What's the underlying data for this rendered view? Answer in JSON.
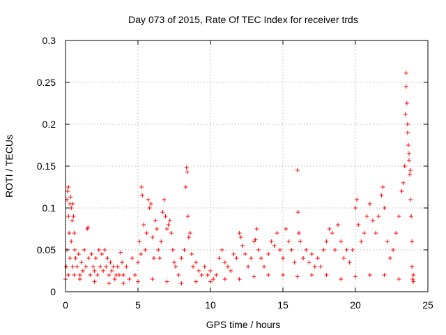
{
  "chart_data": {
    "type": "scatter",
    "title": "Day 073 of 2015, Rate Of TEC Index for receiver trds",
    "xlabel": "GPS time / hours",
    "ylabel": "ROTI / TECUs",
    "xlim": [
      0,
      25
    ],
    "ylim": [
      0,
      0.3
    ],
    "x_ticks": [
      0,
      5,
      10,
      15,
      20,
      25
    ],
    "y_ticks": [
      0,
      0.05,
      0.1,
      0.15,
      0.2,
      0.25,
      0.3
    ],
    "x_tick_labels": [
      "0",
      "5",
      "10",
      "15",
      "20",
      "25"
    ],
    "y_tick_labels": [
      "0",
      "0.05",
      "0.1",
      "0.15",
      "0.2",
      "0.25",
      "0.3"
    ],
    "grid": true,
    "marker": "plus",
    "color": "#ff0000",
    "points": [
      [
        0.0,
        0.015
      ],
      [
        0.05,
        0.03
      ],
      [
        0.1,
        0.05
      ],
      [
        0.1,
        0.11
      ],
      [
        0.15,
        0.12
      ],
      [
        0.2,
        0.09
      ],
      [
        0.2,
        0.125
      ],
      [
        0.25,
        0.07
      ],
      [
        0.3,
        0.105
      ],
      [
        0.3,
        0.04
      ],
      [
        0.35,
        0.113
      ],
      [
        0.4,
        0.1
      ],
      [
        0.4,
        0.06
      ],
      [
        0.45,
        0.085
      ],
      [
        0.5,
        0.105
      ],
      [
        0.5,
        0.03
      ],
      [
        0.55,
        0.09
      ],
      [
        0.6,
        0.07
      ],
      [
        0.6,
        0.02
      ],
      [
        0.65,
        0.05
      ],
      [
        0.7,
        0.04
      ],
      [
        0.8,
        0.03
      ],
      [
        0.9,
        0.045
      ],
      [
        1.0,
        0.02
      ],
      [
        1.1,
        0.035
      ],
      [
        1.2,
        0.025
      ],
      [
        1.3,
        0.05
      ],
      [
        1.4,
        0.03
      ],
      [
        1.5,
        0.075
      ],
      [
        1.55,
        0.077
      ],
      [
        1.6,
        0.04
      ],
      [
        1.7,
        0.02
      ],
      [
        1.8,
        0.045
      ],
      [
        1.9,
        0.03
      ],
      [
        2.0,
        0.025
      ],
      [
        2.1,
        0.04
      ],
      [
        2.2,
        0.02
      ],
      [
        2.3,
        0.05
      ],
      [
        2.4,
        0.03
      ],
      [
        2.5,
        0.045
      ],
      [
        2.6,
        0.025
      ],
      [
        2.7,
        0.05
      ],
      [
        2.8,
        0.03
      ],
      [
        2.9,
        0.04
      ],
      [
        3.0,
        0.02
      ],
      [
        3.1,
        0.035
      ],
      [
        3.2,
        0.025
      ],
      [
        3.3,
        0.03
      ],
      [
        3.4,
        0.015
      ],
      [
        3.5,
        0.02
      ],
      [
        3.6,
        0.03
      ],
      [
        3.7,
        0.02
      ],
      [
        3.8,
        0.047
      ],
      [
        3.9,
        0.035
      ],
      [
        4.0,
        0.02
      ],
      [
        4.2,
        0.03
      ],
      [
        4.4,
        0.015
      ],
      [
        4.6,
        0.04
      ],
      [
        4.8,
        0.02
      ],
      [
        5.0,
        0.035
      ],
      [
        5.1,
        0.06
      ],
      [
        5.2,
        0.045
      ],
      [
        5.25,
        0.125
      ],
      [
        5.3,
        0.115
      ],
      [
        5.4,
        0.08
      ],
      [
        5.5,
        0.05
      ],
      [
        5.6,
        0.07
      ],
      [
        5.7,
        0.11
      ],
      [
        5.8,
        0.1
      ],
      [
        5.9,
        0.105
      ],
      [
        6.0,
        0.065
      ],
      [
        6.1,
        0.04
      ],
      [
        6.2,
        0.085
      ],
      [
        6.3,
        0.075
      ],
      [
        6.4,
        0.05
      ],
      [
        6.5,
        0.04
      ],
      [
        6.6,
        0.06
      ],
      [
        6.7,
        0.095
      ],
      [
        6.8,
        0.11
      ],
      [
        6.9,
        0.09
      ],
      [
        7.0,
        0.075
      ],
      [
        7.1,
        0.08
      ],
      [
        7.2,
        0.085
      ],
      [
        7.3,
        0.07
      ],
      [
        7.4,
        0.05
      ],
      [
        7.5,
        0.035
      ],
      [
        7.6,
        0.03
      ],
      [
        7.8,
        0.02
      ],
      [
        8.0,
        0.04
      ],
      [
        8.2,
        0.05
      ],
      [
        8.3,
        0.125
      ],
      [
        8.35,
        0.148
      ],
      [
        8.4,
        0.143
      ],
      [
        8.45,
        0.09
      ],
      [
        8.5,
        0.065
      ],
      [
        8.6,
        0.07
      ],
      [
        8.7,
        0.045
      ],
      [
        8.8,
        0.03
      ],
      [
        9.0,
        0.035
      ],
      [
        9.2,
        0.025
      ],
      [
        9.4,
        0.02
      ],
      [
        9.6,
        0.03
      ],
      [
        9.8,
        0.02
      ],
      [
        10.0,
        0.025
      ],
      [
        10.2,
        0.015
      ],
      [
        10.4,
        0.02
      ],
      [
        10.6,
        0.04
      ],
      [
        10.8,
        0.05
      ],
      [
        11.0,
        0.035
      ],
      [
        11.2,
        0.03
      ],
      [
        11.4,
        0.025
      ],
      [
        11.6,
        0.045
      ],
      [
        11.8,
        0.04
      ],
      [
        12.0,
        0.07
      ],
      [
        12.1,
        0.065
      ],
      [
        12.2,
        0.055
      ],
      [
        12.4,
        0.045
      ],
      [
        12.6,
        0.03
      ],
      [
        12.8,
        0.04
      ],
      [
        13.0,
        0.06
      ],
      [
        13.1,
        0.062
      ],
      [
        13.2,
        0.075
      ],
      [
        13.3,
        0.05
      ],
      [
        13.5,
        0.04
      ],
      [
        13.7,
        0.03
      ],
      [
        14.0,
        0.045
      ],
      [
        14.2,
        0.06
      ],
      [
        14.4,
        0.055
      ],
      [
        14.6,
        0.07
      ],
      [
        14.8,
        0.05
      ],
      [
        15.0,
        0.04
      ],
      [
        15.2,
        0.075
      ],
      [
        15.4,
        0.06
      ],
      [
        15.6,
        0.05
      ],
      [
        15.8,
        0.035
      ],
      [
        16.0,
        0.145
      ],
      [
        16.05,
        0.095
      ],
      [
        16.1,
        0.07
      ],
      [
        16.2,
        0.06
      ],
      [
        16.4,
        0.04
      ],
      [
        16.6,
        0.05
      ],
      [
        16.8,
        0.035
      ],
      [
        17.0,
        0.045
      ],
      [
        17.2,
        0.03
      ],
      [
        17.4,
        0.04
      ],
      [
        17.6,
        0.03
      ],
      [
        17.8,
        0.05
      ],
      [
        18.0,
        0.06
      ],
      [
        18.2,
        0.075
      ],
      [
        18.4,
        0.07
      ],
      [
        18.6,
        0.05
      ],
      [
        18.8,
        0.08
      ],
      [
        19.0,
        0.06
      ],
      [
        19.2,
        0.04
      ],
      [
        19.4,
        0.05
      ],
      [
        19.6,
        0.035
      ],
      [
        19.8,
        0.05
      ],
      [
        20.0,
        0.1
      ],
      [
        20.1,
        0.11
      ],
      [
        20.2,
        0.08
      ],
      [
        20.4,
        0.06
      ],
      [
        20.6,
        0.07
      ],
      [
        20.8,
        0.09
      ],
      [
        21.0,
        0.105
      ],
      [
        21.2,
        0.085
      ],
      [
        21.4,
        0.07
      ],
      [
        21.6,
        0.09
      ],
      [
        21.8,
        0.115
      ],
      [
        21.9,
        0.125
      ],
      [
        22.0,
        0.1
      ],
      [
        22.2,
        0.06
      ],
      [
        22.4,
        0.04
      ],
      [
        22.6,
        0.05
      ],
      [
        22.8,
        0.07
      ],
      [
        23.0,
        0.09
      ],
      [
        23.2,
        0.12
      ],
      [
        23.3,
        0.13
      ],
      [
        23.4,
        0.15
      ],
      [
        23.45,
        0.212
      ],
      [
        23.5,
        0.261
      ],
      [
        23.5,
        0.245
      ],
      [
        23.55,
        0.225
      ],
      [
        23.6,
        0.2
      ],
      [
        23.6,
        0.19
      ],
      [
        23.65,
        0.175
      ],
      [
        23.7,
        0.165
      ],
      [
        23.7,
        0.157
      ],
      [
        23.75,
        0.14
      ],
      [
        23.8,
        0.145
      ],
      [
        23.8,
        0.11
      ],
      [
        23.85,
        0.09
      ],
      [
        23.9,
        0.06
      ],
      [
        23.9,
        0.03
      ],
      [
        23.95,
        0.015
      ],
      [
        24.0,
        0.02
      ],
      [
        0.2,
        0.02
      ],
      [
        1.0,
        0.015
      ],
      [
        2.0,
        0.012
      ],
      [
        3.0,
        0.01
      ],
      [
        4.0,
        0.01
      ],
      [
        5.0,
        0.012
      ],
      [
        6.0,
        0.015
      ],
      [
        7.0,
        0.012
      ],
      [
        8.0,
        0.01
      ],
      [
        9.0,
        0.012
      ],
      [
        10.0,
        0.012
      ],
      [
        11.0,
        0.015
      ],
      [
        12.0,
        0.015
      ],
      [
        13.0,
        0.018
      ],
      [
        14.0,
        0.02
      ],
      [
        15.0,
        0.02
      ],
      [
        16.0,
        0.018
      ],
      [
        17.0,
        0.02
      ],
      [
        18.0,
        0.02
      ],
      [
        19.0,
        0.015
      ],
      [
        20.0,
        0.018
      ],
      [
        21.0,
        0.02
      ],
      [
        22.0,
        0.02
      ],
      [
        23.0,
        0.015
      ],
      [
        24.0,
        0.012
      ]
    ]
  }
}
